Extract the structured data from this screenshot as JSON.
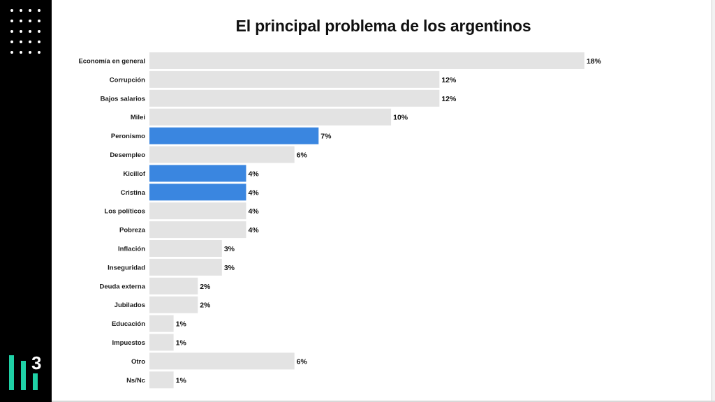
{
  "chart_data": {
    "type": "bar",
    "orientation": "horizontal",
    "title": "El principal problema de los argentinos",
    "xlabel": "",
    "ylabel": "",
    "xlim": [
      0,
      18
    ],
    "grid": false,
    "categories": [
      "Economía en general",
      "Corrupción",
      "Bajos salarios",
      "Milei",
      "Peronismo",
      "Desempleo",
      "Kicillof",
      "Cristina",
      "Los políticos",
      "Pobreza",
      "Inflación",
      "Inseguridad",
      "Deuda externa",
      "Jubilados",
      "Educación",
      "Impuestos",
      "Otro",
      "Ns/Nc"
    ],
    "values": [
      18,
      12,
      12,
      10,
      7,
      6,
      4,
      4,
      4,
      4,
      3,
      3,
      2,
      2,
      1,
      1,
      6,
      1
    ],
    "value_labels": [
      "18%",
      "12%",
      "12%",
      "10%",
      "7%",
      "6%",
      "4%",
      "4%",
      "4%",
      "4%",
      "3%",
      "3%",
      "2%",
      "2%",
      "1%",
      "1%",
      "6%",
      "1%"
    ],
    "highlighted": [
      false,
      false,
      false,
      false,
      true,
      false,
      true,
      true,
      false,
      false,
      false,
      false,
      false,
      false,
      false,
      false,
      false,
      false
    ],
    "colors": {
      "default_bar": "#e3e3e3",
      "highlight_bar": "#3a86e0"
    }
  },
  "brand": {
    "logo_text": "3"
  }
}
